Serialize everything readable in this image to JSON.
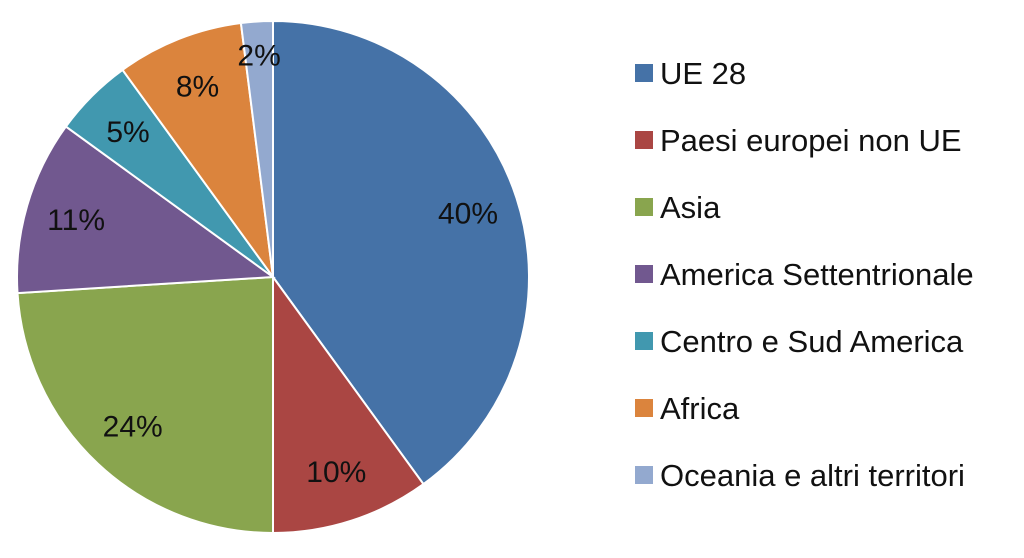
{
  "chart_data": {
    "type": "pie",
    "title": "",
    "legend_position": "right",
    "slices": [
      {
        "name": "UE 28",
        "value": 40,
        "label": "40%",
        "color": "#4572A7"
      },
      {
        "name": "Paesi europei non UE",
        "value": 10,
        "label": "10%",
        "color": "#AA4643"
      },
      {
        "name": "Asia",
        "value": 24,
        "label": "24%",
        "color": "#89A54E"
      },
      {
        "name": "America Settentrionale",
        "value": 11,
        "label": "11%",
        "color": "#71588F"
      },
      {
        "name": "Centro e Sud America",
        "value": 5,
        "label": "5%",
        "color": "#4198AF"
      },
      {
        "name": "Africa",
        "value": 8,
        "label": "8%",
        "color": "#DB843D"
      },
      {
        "name": "Oceania e altri territori",
        "value": 2,
        "label": "2%",
        "color": "#93A9CF"
      }
    ]
  }
}
